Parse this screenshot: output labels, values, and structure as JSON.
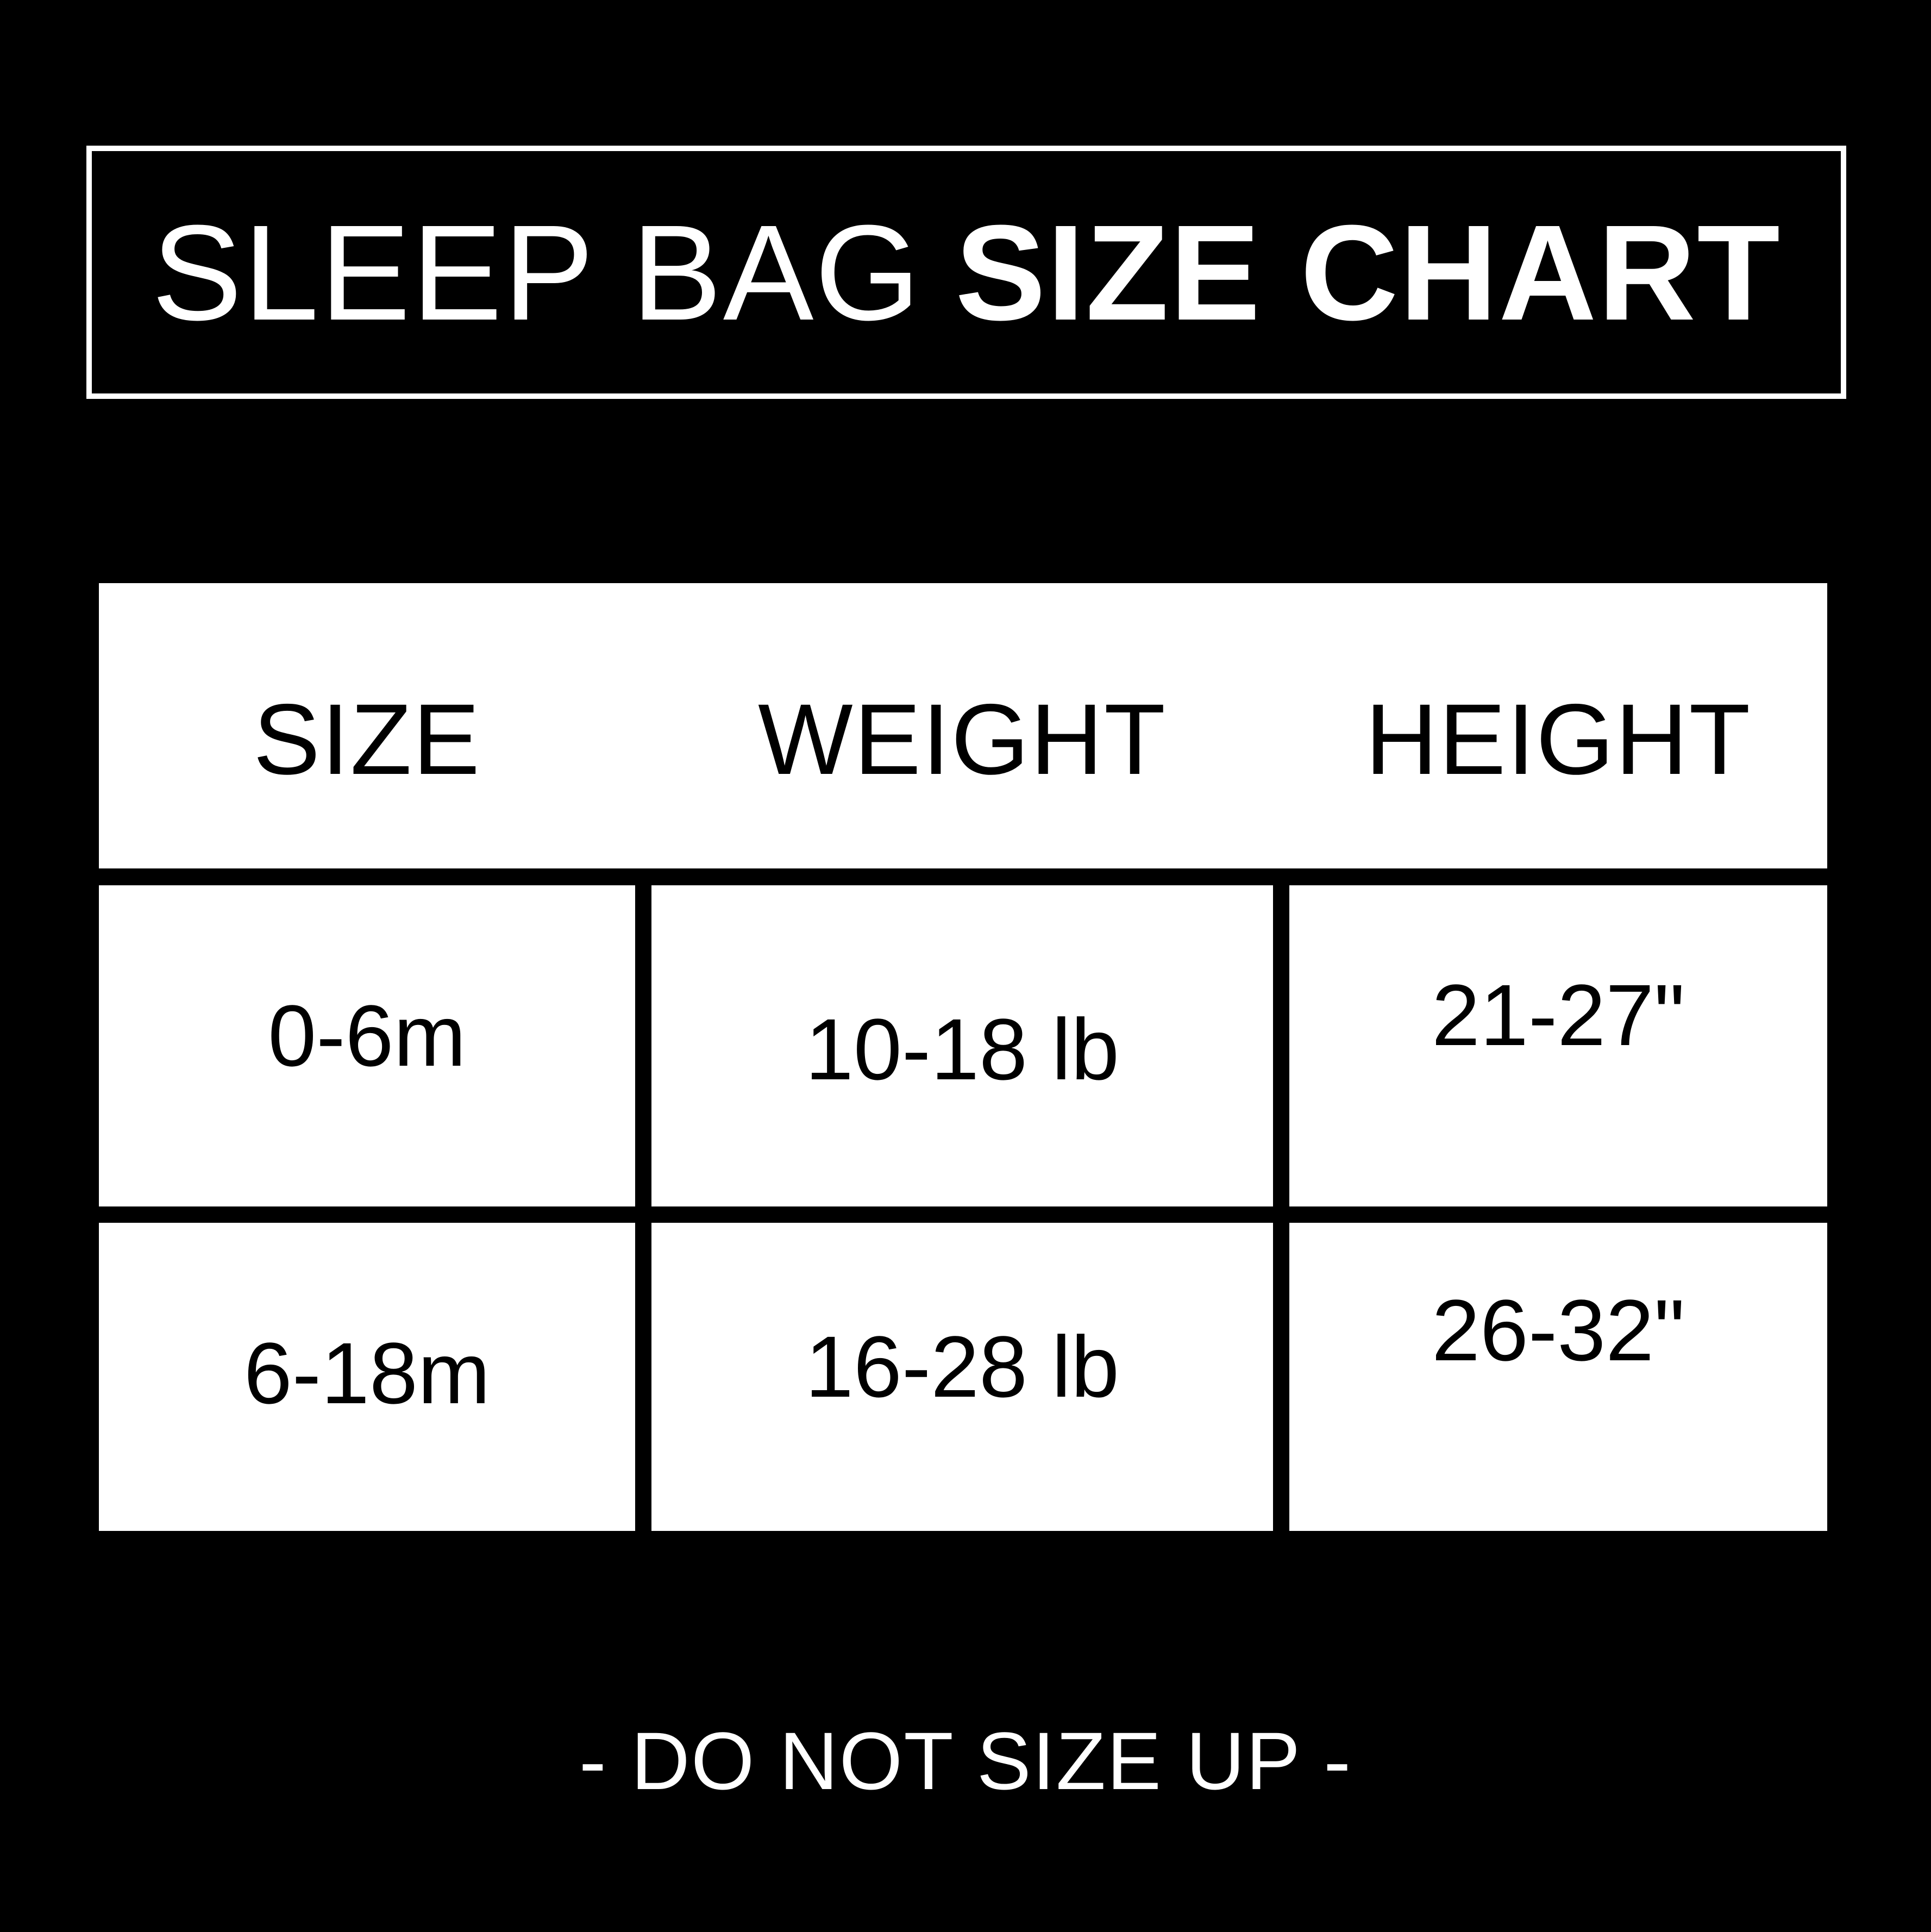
{
  "title": {
    "light": "SLEEP BAG",
    "bold": "SIZE CHART",
    "full": "SLEEP BAG SIZE CHART"
  },
  "chart_data": {
    "type": "table",
    "title": "SLEEP BAG SIZE CHART",
    "columns": [
      "SIZE",
      "WEIGHT",
      "HEIGHT"
    ],
    "rows": [
      [
        "0-6m",
        "10-18 lb",
        "21-27\""
      ],
      [
        "6-18m",
        "16-28 lb",
        "26-32\""
      ]
    ]
  },
  "footer": {
    "note": "- DO NOT SIZE UP -"
  },
  "colors": {
    "background": "#000000",
    "foreground": "#ffffff",
    "table_text": "#000000"
  }
}
